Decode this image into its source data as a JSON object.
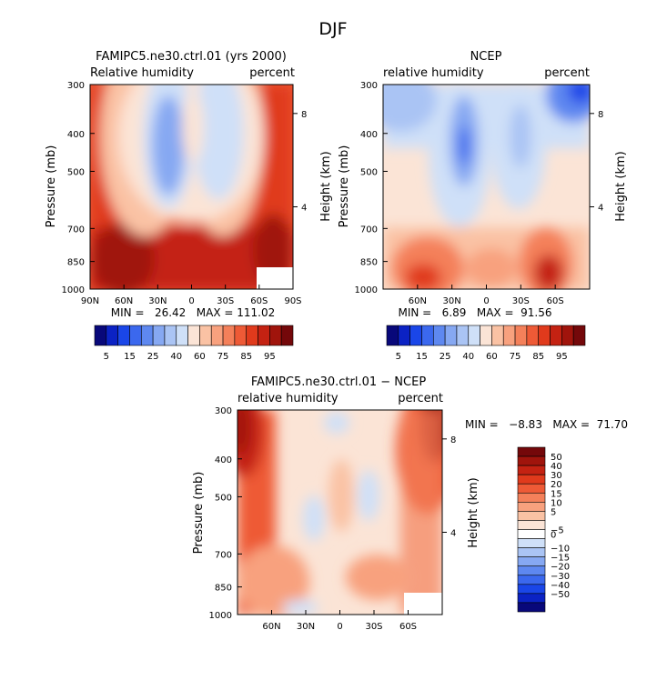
{
  "page_title": "DJF",
  "chart_data": [
    {
      "type": "heatmap",
      "title": "FAMIPC5.ne30.ctrl.01 (yrs 2000)",
      "left_label": "Relative humidity",
      "right_label": "percent",
      "ylabel": "Pressure (mb)",
      "ylabel_right": "Height (km)",
      "x_ticks": [
        "90N",
        "60N",
        "30N",
        "0",
        "30S",
        "60S",
        "90S"
      ],
      "y_ticks": [
        "300",
        "400",
        "500",
        "700",
        "850",
        "1000"
      ],
      "height_ticks": [
        "8",
        "4"
      ],
      "stats_text": "MIN =   26.42   MAX = 111.02",
      "xlim": [
        90,
        -90
      ],
      "ylim": [
        300,
        1000
      ]
    },
    {
      "type": "heatmap",
      "title": "NCEP",
      "left_label": "relative humidity",
      "right_label": "percent",
      "ylabel": "Pressure (mb)",
      "ylabel_right": "Height (km)",
      "x_ticks": [
        "60N",
        "30N",
        "0",
        "30S",
        "60S"
      ],
      "y_ticks": [
        "300",
        "400",
        "500",
        "700",
        "850",
        "1000"
      ],
      "height_ticks": [
        "8",
        "4"
      ],
      "stats_text": "MIN =   6.89   MAX =  91.56",
      "xlim": [
        90,
        -90
      ],
      "ylim": [
        300,
        1000
      ]
    },
    {
      "type": "heatmap",
      "title": "FAMIPC5.ne30.ctrl.01 − NCEP",
      "left_label": "relative humidity",
      "right_label": "percent",
      "ylabel": "Pressure (mb)",
      "ylabel_right": "Height (km)",
      "x_ticks": [
        "60N",
        "30N",
        "0",
        "30S",
        "60S"
      ],
      "y_ticks": [
        "300",
        "400",
        "500",
        "700",
        "850",
        "1000"
      ],
      "height_ticks": [
        "8",
        "4"
      ],
      "stats_text": "MIN =   −8.83   MAX =  71.70",
      "xlim": [
        90,
        -90
      ],
      "ylim": [
        300,
        1000
      ]
    }
  ],
  "colorbar_abs": {
    "colors": [
      "#08087a",
      "#0b22c4",
      "#1a46e8",
      "#3b68ee",
      "#5e88f0",
      "#86a8f2",
      "#aac4f4",
      "#cfe0f8",
      "#fbe4d6",
      "#fac2a4",
      "#f8a17e",
      "#f4805a",
      "#ee5a36",
      "#e03a1c",
      "#c42212",
      "#a0140c",
      "#74080a"
    ],
    "labels": [
      "5",
      "15",
      "25",
      "40",
      "60",
      "75",
      "85",
      "95"
    ]
  },
  "colorbar_diff": {
    "colors": [
      "#74080a",
      "#a0140c",
      "#c42212",
      "#e03a1c",
      "#ee5a36",
      "#f4805a",
      "#f8a17e",
      "#fac2a4",
      "#fbe4d6",
      "#ffffff",
      "#cfe0f8",
      "#aac4f4",
      "#86a8f2",
      "#5e88f0",
      "#3b68ee",
      "#1a46e8",
      "#0b22c4",
      "#08087a"
    ],
    "labels": [
      "50",
      "40",
      "30",
      "20",
      "15",
      "10",
      "5",
      "0",
      "−5",
      "−10",
      "−15",
      "−20",
      "−30",
      "−40",
      "−50"
    ]
  }
}
